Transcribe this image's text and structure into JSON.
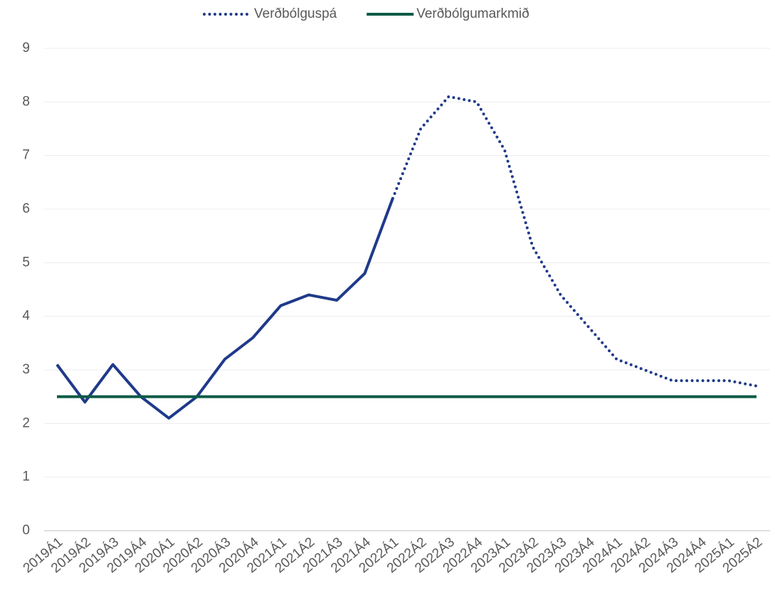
{
  "chart_data": {
    "type": "line",
    "categories": [
      "2019Á1",
      "2019Á2",
      "2019Á3",
      "2019Á4",
      "2020Á1",
      "2020Á2",
      "2020Á3",
      "2020Á4",
      "2021Á1",
      "2021Á2",
      "2021Á3",
      "2021Á4",
      "2022Á1",
      "2022Á2",
      "2022Á3",
      "2022Á4",
      "2023Á1",
      "2023Á2",
      "2023Á3",
      "2023Á4",
      "2024Á1",
      "2024Á2",
      "2024Á3",
      "2024Á4",
      "2025Á1",
      "2025Á2"
    ],
    "series": [
      {
        "color": "#1f3a8a",
        "style": "solid",
        "values": [
          3.1,
          2.4,
          3.1,
          2.5,
          2.1,
          2.5,
          3.2,
          3.6,
          4.2,
          4.4,
          4.3,
          4.8,
          6.2,
          null,
          null,
          null,
          null,
          null,
          null,
          null,
          null,
          null,
          null,
          null,
          null,
          null
        ]
      },
      {
        "name": "Verðbólguspá",
        "color": "#1f3a8a",
        "style": "dotted",
        "values": [
          null,
          null,
          null,
          null,
          null,
          null,
          null,
          null,
          null,
          null,
          null,
          null,
          6.2,
          7.5,
          8.1,
          8.0,
          7.1,
          5.3,
          4.4,
          3.8,
          3.2,
          3.0,
          2.8,
          2.8,
          2.8,
          2.7
        ]
      },
      {
        "name": "Verðbólgumarkmið",
        "color": "#0b5a45",
        "style": "solid",
        "values": [
          2.5,
          2.5,
          2.5,
          2.5,
          2.5,
          2.5,
          2.5,
          2.5,
          2.5,
          2.5,
          2.5,
          2.5,
          2.5,
          2.5,
          2.5,
          2.5,
          2.5,
          2.5,
          2.5,
          2.5,
          2.5,
          2.5,
          2.5,
          2.5,
          2.5,
          2.5
        ]
      }
    ],
    "ylim": [
      0,
      9
    ],
    "yticks": [
      0,
      1,
      2,
      3,
      4,
      5,
      6,
      7,
      8,
      9
    ],
    "grid": true,
    "legend": "top"
  }
}
